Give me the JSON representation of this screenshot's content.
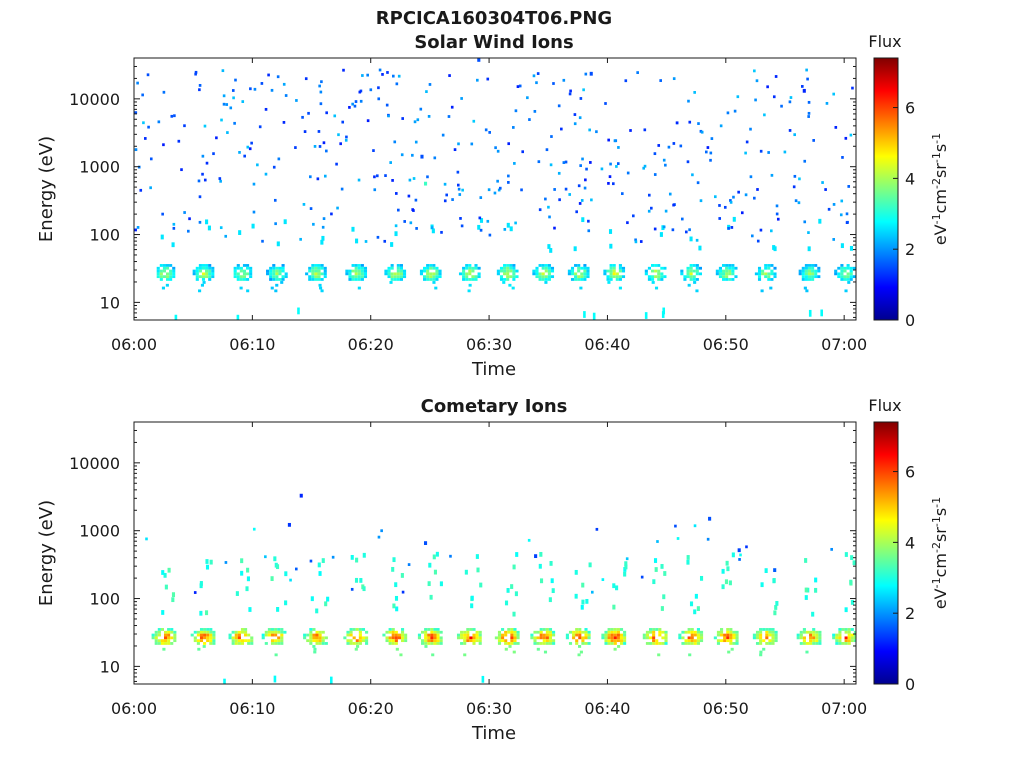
{
  "figure": {
    "title": "RPCICA160304T06.PNG"
  },
  "colors": {
    "background": "#ffffff",
    "axis": "#1a1a1a",
    "colormap": "jet"
  },
  "chart_data": [
    {
      "type": "heatmap",
      "title": "Solar Wind Ions",
      "xlabel": "Time",
      "ylabel": "Energy (eV)",
      "x_ticks": [
        "06:00",
        "06:10",
        "06:20",
        "06:30",
        "06:40",
        "06:50",
        "07:00"
      ],
      "y_ticks": [
        "10",
        "100",
        "1000",
        "10000"
      ],
      "y_scale": "log",
      "y_range": [
        5.5,
        40000
      ],
      "x_range_minutes": [
        0,
        61
      ],
      "colorbar": {
        "label": "Flux",
        "unit_label": "eV-1cm-2sr-1s-1",
        "range": [
          0,
          7.4
        ],
        "ticks": [
          "0",
          "2",
          "4",
          "6"
        ]
      },
      "band_center_energy_eV": 28,
      "band_times_minutes": [
        2.5,
        5.8,
        9,
        12,
        15.3,
        18.7,
        22,
        25,
        28.3,
        31.5,
        34.5,
        37.5,
        40.5,
        44,
        47,
        50,
        53.3,
        57,
        60
      ],
      "band_flux": [
        4.5,
        4.5,
        4.5,
        4.3,
        4.5,
        4.6,
        4.7,
        4.6,
        4.7,
        4.8,
        4.6,
        4.6,
        4.8,
        4.7,
        4.5,
        4.4,
        4.3,
        4.3,
        4.4
      ],
      "features": [
        {
          "time_min": 24.2,
          "energy_eV": 1500,
          "flux": 1.5
        },
        {
          "time_min": 24.5,
          "energy_eV": 600,
          "flux": 3.2
        },
        {
          "time_min": 29,
          "energy_eV": 40000,
          "flux": 1.5
        },
        {
          "time_min": 38.5,
          "energy_eV": 25000,
          "flux": 1.5
        },
        {
          "time_min": 56.5,
          "energy_eV": 14000,
          "flux": 1.2
        }
      ]
    },
    {
      "type": "heatmap",
      "title": "Cometary Ions",
      "xlabel": "Time",
      "ylabel": "Energy (eV)",
      "x_ticks": [
        "06:00",
        "06:10",
        "06:20",
        "06:30",
        "06:40",
        "06:50",
        "07:00"
      ],
      "y_ticks": [
        "10",
        "100",
        "1000",
        "10000"
      ],
      "y_scale": "log",
      "y_range": [
        5.5,
        40000
      ],
      "x_range_minutes": [
        0,
        61
      ],
      "colorbar": {
        "label": "Flux",
        "unit_label": "eV-1cm-2sr-1s-1",
        "range": [
          0,
          7.4
        ],
        "ticks": [
          "0",
          "2",
          "4",
          "6"
        ]
      },
      "band_center_energy_eV": 28,
      "band_times_minutes": [
        2.5,
        5.8,
        9,
        11.8,
        15.3,
        18.7,
        22,
        25,
        28.3,
        31.5,
        34.5,
        37.5,
        40.5,
        44,
        47,
        50,
        53.3,
        57,
        60
      ],
      "band_flux": [
        6.4,
        6.3,
        6.5,
        6.3,
        6.2,
        6.5,
        6.6,
        6.4,
        6.6,
        6.7,
        6.4,
        6.5,
        6.7,
        6.6,
        6.4,
        6.5,
        6.3,
        6.2,
        6.3
      ],
      "features": [
        {
          "time_min": 13,
          "energy_eV": 1300,
          "flux": 1.3
        },
        {
          "time_min": 14,
          "energy_eV": 3500,
          "flux": 1.2
        },
        {
          "time_min": 24.5,
          "energy_eV": 700,
          "flux": 1.5
        },
        {
          "time_min": 33.8,
          "energy_eV": 450,
          "flux": 1.4
        },
        {
          "time_min": 48.5,
          "energy_eV": 1600,
          "flux": 1.5
        },
        {
          "time_min": 51,
          "energy_eV": 550,
          "flux": 1.4
        },
        {
          "time_min": 54,
          "energy_eV": 280,
          "flux": 1.6
        }
      ]
    }
  ]
}
